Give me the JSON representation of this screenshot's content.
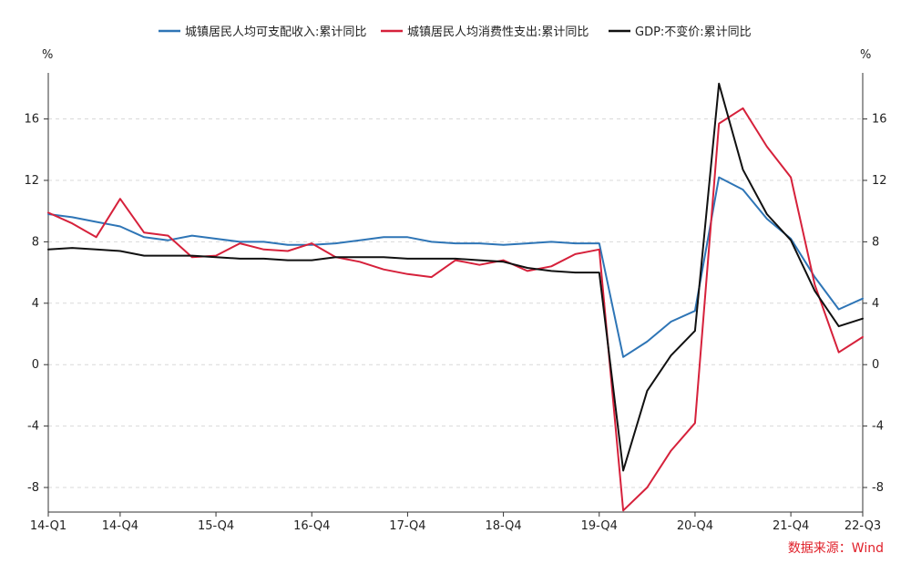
{
  "chart_data": {
    "type": "line",
    "y_unit_left": "%",
    "y_unit_right": "%",
    "ylim": [
      -9.6,
      19
    ],
    "yticks": [
      -8,
      -4,
      0,
      4,
      8,
      12,
      16
    ],
    "x_tick_labels": [
      {
        "index": 0,
        "label": "14-Q1"
      },
      {
        "index": 3,
        "label": "14-Q4"
      },
      {
        "index": 7,
        "label": "15-Q4"
      },
      {
        "index": 11,
        "label": "16-Q4"
      },
      {
        "index": 15,
        "label": "17-Q4"
      },
      {
        "index": 19,
        "label": "18-Q4"
      },
      {
        "index": 23,
        "label": "19-Q4"
      },
      {
        "index": 27,
        "label": "20-Q4"
      },
      {
        "index": 31,
        "label": "21-Q4"
      },
      {
        "index": 34,
        "label": "22-Q3"
      }
    ],
    "x_count": 35,
    "series": [
      {
        "name": "城镇居民人均可支配收入:累计同比",
        "color": "#2e75b6",
        "values": [
          9.8,
          9.6,
          9.3,
          9.0,
          8.3,
          8.1,
          8.4,
          8.2,
          8.0,
          8.0,
          7.8,
          7.8,
          7.9,
          8.1,
          8.3,
          8.3,
          8.0,
          7.9,
          7.9,
          7.8,
          7.9,
          8.0,
          7.9,
          7.9,
          0.5,
          1.5,
          2.8,
          3.5,
          12.2,
          11.4,
          9.5,
          8.2,
          5.7,
          3.6,
          4.3
        ]
      },
      {
        "name": "城镇居民人均消费性支出:累计同比",
        "color": "#d6213b",
        "values": [
          9.9,
          9.2,
          8.3,
          10.8,
          8.6,
          8.4,
          7.0,
          7.1,
          7.9,
          7.5,
          7.4,
          7.9,
          7.0,
          6.7,
          6.2,
          5.9,
          5.7,
          6.8,
          6.5,
          6.8,
          6.1,
          6.4,
          7.2,
          7.5,
          -9.5,
          -8.0,
          -5.6,
          -3.8,
          15.7,
          16.7,
          14.2,
          12.2,
          5.2,
          0.8,
          1.8
        ]
      },
      {
        "name": "GDP:不变价:累计同比",
        "color": "#111111",
        "values": [
          7.5,
          7.6,
          7.5,
          7.4,
          7.1,
          7.1,
          7.1,
          7.0,
          6.9,
          6.9,
          6.8,
          6.8,
          7.0,
          7.0,
          7.0,
          6.9,
          6.9,
          6.9,
          6.8,
          6.7,
          6.3,
          6.1,
          6.0,
          6.0,
          -6.9,
          -1.7,
          0.6,
          2.2,
          18.3,
          12.7,
          9.8,
          8.1,
          4.8,
          2.5,
          3.0
        ]
      }
    ]
  },
  "source_label": "数据来源：Wind"
}
